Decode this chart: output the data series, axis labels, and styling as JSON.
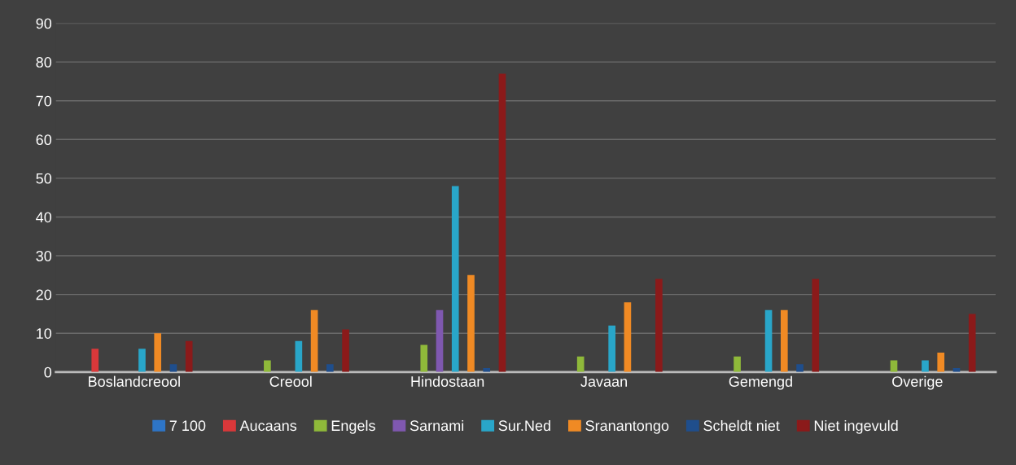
{
  "chart_data": {
    "type": "bar",
    "categories": [
      "Boslandcreool",
      "Creool",
      "Hindostaan",
      "Javaan",
      "Gemengd",
      "Overige"
    ],
    "series": [
      {
        "name": "7 100",
        "color": "#2e75c6",
        "values": [
          0,
          0,
          0,
          0,
          0,
          0
        ]
      },
      {
        "name": "Aucaans",
        "color": "#d9383a",
        "values": [
          6,
          0,
          0,
          0,
          0,
          0
        ]
      },
      {
        "name": "Engels",
        "color": "#8fb93a",
        "values": [
          0,
          3,
          7,
          4,
          4,
          3
        ]
      },
      {
        "name": "Sarnami",
        "color": "#7f58b0",
        "values": [
          0,
          0,
          16,
          0,
          0,
          0
        ]
      },
      {
        "name": "Sur.Ned",
        "color": "#29a6c9",
        "values": [
          6,
          8,
          48,
          12,
          16,
          3
        ]
      },
      {
        "name": "Sranantongo",
        "color": "#f08a24",
        "values": [
          10,
          16,
          25,
          18,
          16,
          5
        ]
      },
      {
        "name": "Scheldt niet",
        "color": "#1f4e8c",
        "values": [
          2,
          2,
          1,
          0,
          2,
          1
        ]
      },
      {
        "name": "Niet ingevuld",
        "color": "#8b1a1a",
        "values": [
          8,
          11,
          77,
          24,
          24,
          15
        ]
      }
    ],
    "ylim": [
      0,
      90
    ],
    "yticks": [
      0,
      10,
      20,
      30,
      40,
      50,
      60,
      70,
      80,
      90
    ],
    "grid": "y",
    "legend": "bottom"
  }
}
